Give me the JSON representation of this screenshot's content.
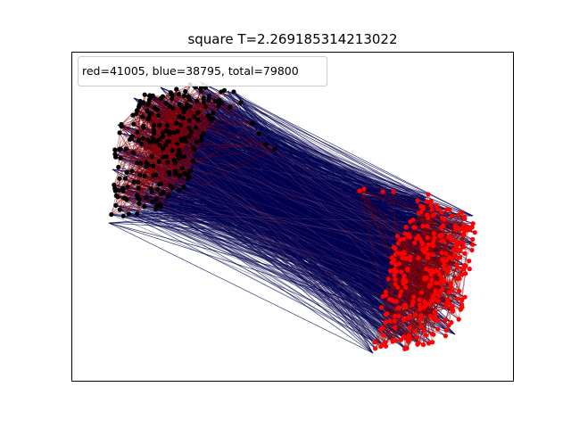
{
  "chart_data": {
    "type": "network",
    "title": "square T=2.269185314213022",
    "legend_text": "red=41005, blue=38795, total=79800",
    "counts": {
      "red": 41005,
      "blue": 38795,
      "total": 79800
    },
    "axes": {
      "xticks": "none",
      "yticks": "none",
      "grid": false
    },
    "legend_placement": "upper-left",
    "colors": {
      "background": "#ffffff",
      "axes_frame": "#000000",
      "cross_edges": "#000050",
      "cluster_edges": "#8b0000",
      "red_nodes": "#ff0000",
      "black_nodes": "#000000"
    },
    "clusters": [
      {
        "name": "black-node cluster",
        "node_color": "black",
        "position": "upper-left"
      },
      {
        "name": "red-node cluster",
        "node_color": "red",
        "position": "lower-right"
      }
    ]
  }
}
